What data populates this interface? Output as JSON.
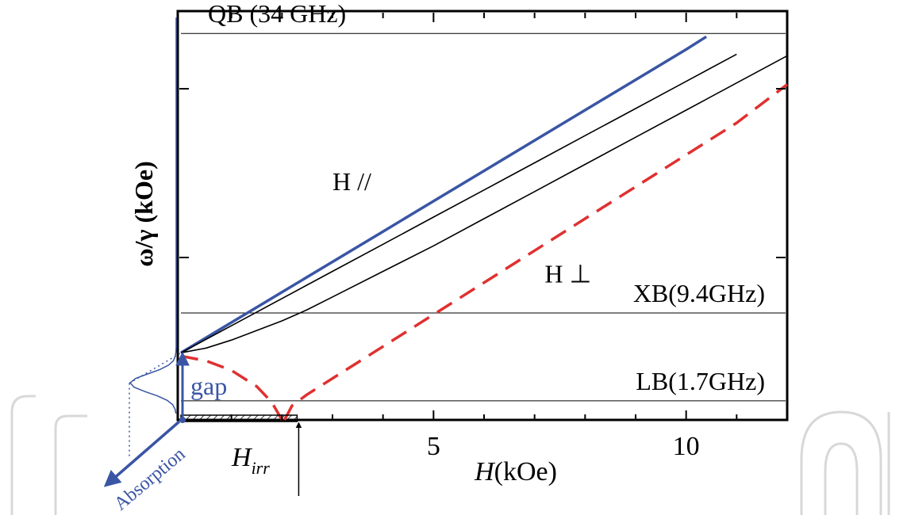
{
  "chart_data": {
    "type": "line",
    "xlabel_main": "H",
    "xlabel_unit": "(kOe)",
    "ylabel": "ω/γ (kOe)",
    "x_ticks": [
      {
        "x": 5,
        "label": "5"
      },
      {
        "x": 10,
        "label": "10"
      }
    ],
    "xlim": [
      0,
      12
    ],
    "ylim": [
      0,
      12.8
    ],
    "bands": [
      {
        "name": "QB (34 GHz)",
        "y": 12.1
      },
      {
        "name": "XB(9.4GHz)",
        "y": 3.35
      },
      {
        "name": "LB(1.7GHz)",
        "y": 0.6
      }
    ],
    "series": [
      {
        "name": "H //",
        "color": "#3a55a4",
        "style": "solid",
        "x": [
          0.0,
          1.0,
          2.0,
          3.0,
          4.0,
          5.0,
          6.0,
          7.0,
          8.0,
          9.0,
          10.0,
          10.4
        ],
        "y": [
          2.1,
          3.05,
          4.0,
          4.95,
          5.9,
          6.85,
          7.8,
          8.75,
          9.7,
          10.65,
          11.6,
          12.0
        ]
      },
      {
        "name": "",
        "color": "#000000",
        "style": "solid",
        "x": [
          0.0,
          1.0,
          2.0,
          3.0,
          4.0,
          5.0,
          6.0,
          7.0,
          8.0,
          9.0,
          10.0,
          11.0
        ],
        "y": [
          2.1,
          2.95,
          3.8,
          4.65,
          5.5,
          6.35,
          7.2,
          8.05,
          8.9,
          9.75,
          10.6,
          11.45
        ]
      },
      {
        "name": "",
        "color": "#000000",
        "style": "solid",
        "x": [
          0.0,
          0.5,
          1.0,
          1.5,
          2.0,
          2.5,
          3.0,
          4.0,
          5.0,
          6.0,
          7.0,
          8.0,
          9.0,
          10.0,
          11.0,
          12.0
        ],
        "y": [
          2.1,
          2.25,
          2.5,
          2.8,
          3.1,
          3.45,
          3.85,
          4.65,
          5.45,
          6.3,
          7.15,
          8.0,
          8.85,
          9.7,
          10.55,
          11.4
        ]
      },
      {
        "name": "H ⊥",
        "color": "#e03030",
        "style": "dashed",
        "x": [
          2.05,
          2.2,
          2.5,
          3.0,
          4.0,
          5.0,
          6.0,
          7.0,
          8.0,
          9.0,
          10.0,
          11.0,
          12.0
        ],
        "y": [
          0.0,
          0.45,
          0.8,
          1.3,
          2.3,
          3.3,
          4.3,
          5.3,
          6.3,
          7.3,
          8.3,
          9.3,
          10.5
        ]
      },
      {
        "name": "",
        "color": "#e03030",
        "style": "dashed",
        "x": [
          0.0,
          0.5,
          1.0,
          1.5,
          1.8,
          2.0
        ],
        "y": [
          2.0,
          1.85,
          1.55,
          1.05,
          0.55,
          0.0
        ]
      }
    ],
    "series_labels": [
      {
        "text": "H //",
        "x": 3.0,
        "y": 7.2
      },
      {
        "text": "H ⊥",
        "x": 7.2,
        "y": 4.3
      }
    ],
    "irr_field": {
      "x": 2.3,
      "label_main": "H",
      "label_sub": "irr"
    },
    "gap": {
      "label": "gap",
      "y": 2.1
    },
    "absorption": {
      "label": "Absorption"
    },
    "watermark": "IntechOpen"
  }
}
